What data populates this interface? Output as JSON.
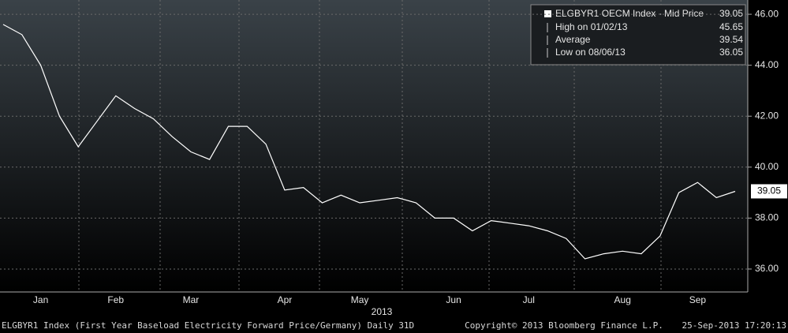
{
  "chart_data": {
    "type": "line",
    "categories": [
      null,
      null,
      "Jan",
      null,
      null,
      null,
      "Feb",
      null,
      null,
      null,
      "Mar",
      null,
      null,
      null,
      null,
      "Apr",
      null,
      null,
      null,
      "May",
      null,
      null,
      null,
      null,
      "Jun",
      null,
      null,
      null,
      "Jul",
      null,
      null,
      null,
      null,
      "Aug",
      null,
      null,
      null,
      "Sep",
      null,
      null
    ],
    "x_axis_label": "2013",
    "values": [
      45.6,
      45.2,
      44.0,
      42.0,
      40.8,
      41.8,
      42.8,
      42.3,
      41.9,
      41.2,
      40.6,
      40.3,
      41.6,
      41.6,
      40.9,
      39.1,
      39.2,
      38.6,
      38.9,
      38.6,
      38.7,
      38.8,
      38.6,
      38.0,
      38.0,
      37.5,
      37.9,
      37.8,
      37.7,
      37.5,
      37.2,
      36.4,
      36.6,
      36.7,
      36.6,
      37.3,
      39.0,
      39.4,
      38.8,
      39.05
    ],
    "color": "#ffffff",
    "ylim": [
      35.1,
      46.56
    ],
    "yticks": [
      {
        "value": 36,
        "label": "36.00"
      },
      {
        "value": 38,
        "label": "38.00"
      },
      {
        "value": 40,
        "label": "40.00"
      },
      {
        "value": 42,
        "label": "42.00"
      },
      {
        "value": 44,
        "label": "44.00"
      },
      {
        "value": 46,
        "label": "46.00"
      }
    ],
    "grid": true,
    "legend": {
      "title": "ELGBYR1 OECM Index - Mid Price",
      "last": 39.05,
      "stats": [
        {
          "label": "High on 01/02/13",
          "value": 45.65
        },
        {
          "label": "Average",
          "value": 39.54
        },
        {
          "label": "Low on 08/06/13",
          "value": 36.05
        }
      ]
    },
    "footer": {
      "left": "ELGBYR1 Index (First Year Baseload Electricity Forward Price/Germany)  Daily 31D",
      "center": "Copyright© 2013 Bloomberg Finance L.P.",
      "right": "25-Sep-2013 17:20:13"
    }
  }
}
